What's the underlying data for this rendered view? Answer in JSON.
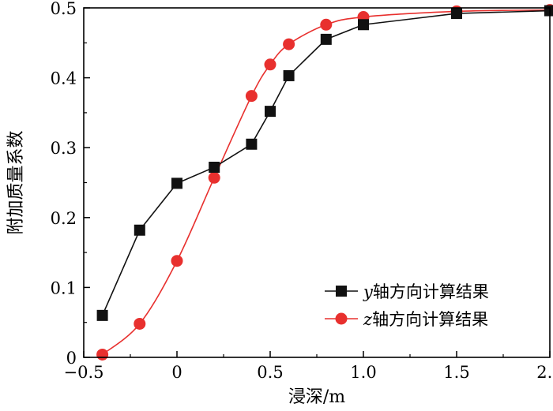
{
  "chart_data": {
    "type": "line",
    "title": "",
    "xlabel": "浸深/m",
    "ylabel": "附加质量系数",
    "xlim": [
      -0.5,
      2.0
    ],
    "ylim": [
      0,
      0.5
    ],
    "xticks": [
      "−0.5",
      "0",
      "0.5",
      "1.0",
      "1.5",
      "2.0"
    ],
    "yticks": [
      "0",
      "0.1",
      "0.2",
      "0.3",
      "0.4",
      "0.5"
    ],
    "grid": false,
    "legend_position": "bottom-right",
    "series": [
      {
        "name": "y轴方向计算结果",
        "name_italic": "y",
        "name_rest": "轴方向计算结果",
        "color": "#111111",
        "marker": "square",
        "interpolation": "linear",
        "x": [
          -0.4,
          -0.2,
          0.0,
          0.2,
          0.4,
          0.5,
          0.6,
          0.8,
          1.0,
          1.5,
          2.0
        ],
        "y": [
          0.06,
          0.182,
          0.249,
          0.272,
          0.305,
          0.352,
          0.403,
          0.455,
          0.476,
          0.492,
          0.496
        ]
      },
      {
        "name": "z轴方向计算结果",
        "name_italic": "z",
        "name_rest": "轴方向计算结果",
        "color": "#e8302e",
        "marker": "circle",
        "interpolation": "smooth",
        "x": [
          -0.4,
          -0.2,
          0.0,
          0.2,
          0.4,
          0.5,
          0.6,
          0.8,
          1.0,
          1.5,
          2.0
        ],
        "y": [
          0.004,
          0.048,
          0.138,
          0.257,
          0.374,
          0.419,
          0.448,
          0.476,
          0.487,
          0.495,
          0.497
        ]
      }
    ]
  }
}
